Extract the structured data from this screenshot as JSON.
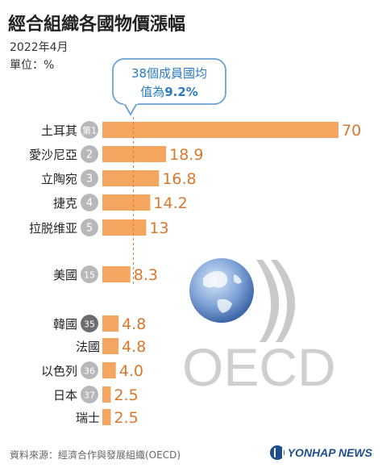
{
  "header": {
    "title": "經合組織各國物價漲幅",
    "date": "2022年4月",
    "unit": "單位：%"
  },
  "callout": {
    "line1": "38個成員國均",
    "line2_prefix": "值為",
    "line2_value": "9.2%"
  },
  "logo": {
    "text": "OECD"
  },
  "footer": {
    "source": "資料來源：經濟合作與發展組織(OECD)",
    "brand": "YONHAP NEWS"
  },
  "colors": {
    "bar": "#f4a55f",
    "value_text": "#d9782d",
    "badge_gray": "#b8b8b8",
    "badge_dark": "#6d6d6d",
    "avg_line": "#e07a2e",
    "callout_border": "#6aa0d8",
    "callout_text": "#2a7bc4",
    "logo": "#c8c8c8",
    "globe": "#5b86c5"
  },
  "chart_data": {
    "type": "bar",
    "orientation": "horizontal",
    "average": 9.2,
    "xlim": [
      0,
      70
    ],
    "rows": [
      {
        "label": "土耳其",
        "rank": "第1",
        "value": 70,
        "value_label": "70",
        "badge": "gray"
      },
      {
        "label": "愛沙尼亞",
        "rank": "2",
        "value": 18.9,
        "value_label": "18.9",
        "badge": "gray"
      },
      {
        "label": "立陶宛",
        "rank": "3",
        "value": 16.8,
        "value_label": "16.8",
        "badge": "gray"
      },
      {
        "label": "捷克",
        "rank": "4",
        "value": 14.2,
        "value_label": "14.2",
        "badge": "gray"
      },
      {
        "label": "拉脱维亚",
        "rank": "5",
        "value": 13,
        "value_label": "13",
        "badge": "gray"
      },
      {
        "label": "美國",
        "rank": "15",
        "value": 8.3,
        "value_label": "8.3",
        "badge": "gray"
      },
      {
        "label": "韓國",
        "rank": "35",
        "value": 4.8,
        "value_label": "4.8",
        "badge": "dark"
      },
      {
        "label": "法國",
        "rank": "",
        "value": 4.8,
        "value_label": "4.8",
        "badge": "none"
      },
      {
        "label": "以色列",
        "rank": "36",
        "value": 4.0,
        "value_label": "4.0",
        "badge": "gray"
      },
      {
        "label": "日本",
        "rank": "37",
        "value": 2.5,
        "value_label": "2.5",
        "badge": "gray"
      },
      {
        "label": "瑞士",
        "rank": "",
        "value": 2.5,
        "value_label": "2.5",
        "badge": "none"
      }
    ]
  }
}
